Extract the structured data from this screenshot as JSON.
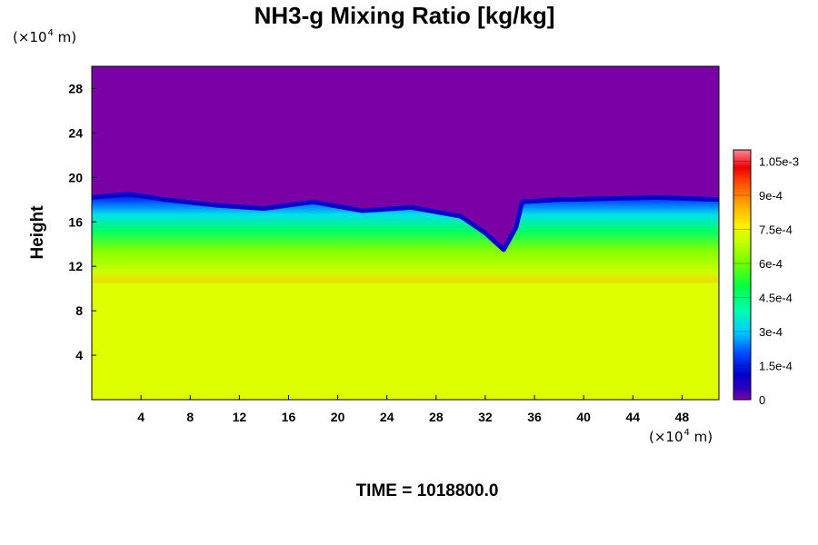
{
  "chart_data": {
    "type": "heatmap",
    "title": "NH3-g Mixing Ratio [kg/kg]",
    "ylabel": "Height",
    "xlabel": "",
    "x_unit": {
      "base": "(×10",
      "exp": "4",
      "suffix": " m)"
    },
    "y_unit": {
      "base": "(×10",
      "exp": "4",
      "suffix": " m)"
    },
    "xlim": [
      0,
      51
    ],
    "ylim": [
      0,
      30
    ],
    "xticks": [
      4,
      8,
      12,
      16,
      20,
      24,
      28,
      32,
      36,
      40,
      44,
      48
    ],
    "yticks": [
      4,
      8,
      12,
      16,
      20,
      24,
      28
    ],
    "colorbar": {
      "min": 0,
      "max": 0.0011,
      "ticks": [
        {
          "value": 0,
          "label": "0"
        },
        {
          "value": 0.00015,
          "label": "1.5e-4"
        },
        {
          "value": 0.0003,
          "label": "3e-4"
        },
        {
          "value": 0.00045,
          "label": "4.5e-4"
        },
        {
          "value": 0.0006,
          "label": "6e-4"
        },
        {
          "value": 0.00075,
          "label": "7.5e-4"
        },
        {
          "value": 0.0009,
          "label": "9e-4"
        },
        {
          "value": 0.00105,
          "label": "1.05e-3"
        }
      ]
    },
    "field_summary": {
      "upper_value": 0,
      "lower_value": 0.0008,
      "mixing_layer_bottom": 10.5,
      "mixing_layer_top_profile": [
        [
          0,
          18.2
        ],
        [
          3,
          18.5
        ],
        [
          6,
          18.0
        ],
        [
          10,
          17.5
        ],
        [
          14,
          17.2
        ],
        [
          18,
          17.8
        ],
        [
          22,
          17.0
        ],
        [
          26,
          17.3
        ],
        [
          30,
          16.5
        ],
        [
          32,
          15.0
        ],
        [
          33.5,
          13.5
        ],
        [
          34.5,
          15.5
        ],
        [
          35,
          17.8
        ],
        [
          38,
          18.0
        ],
        [
          42,
          18.1
        ],
        [
          46,
          18.2
        ],
        [
          51,
          18.0
        ]
      ]
    }
  },
  "time_label": "TIME = 1018800.0"
}
